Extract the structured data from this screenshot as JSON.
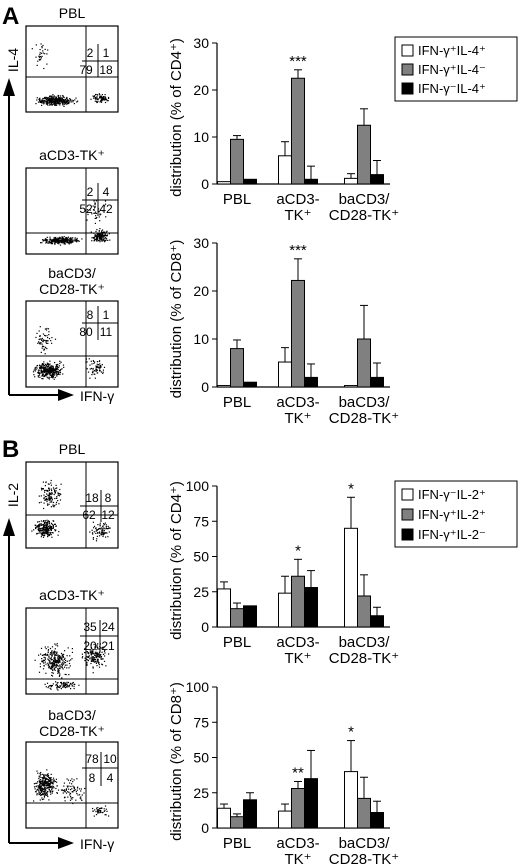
{
  "panels": {
    "A": {
      "letter": "A",
      "flow_axis_y": "IL-4",
      "flow_axis_x": "IFN-γ",
      "flow_plots": [
        {
          "title": "PBL",
          "quadrants": {
            "ul": "2",
            "ur": "1",
            "ll": "79",
            "lr": "18"
          }
        },
        {
          "title": "aCD3-TK⁺",
          "quadrants": {
            "ul": "2",
            "ur": "4",
            "ll": "52",
            "lr": "42"
          }
        },
        {
          "title_line1": "baCD3/",
          "title_line2": "CD28-TK⁺",
          "quadrants": {
            "ul": "8",
            "ur": "1",
            "ll": "80",
            "lr": "11"
          }
        }
      ],
      "legend": [
        "IFN-γ⁺IL-4⁺",
        "IFN-γ⁺IL-4⁻",
        "IFN-γ⁻IL-4⁺"
      ]
    },
    "B": {
      "letter": "B",
      "flow_axis_y": "IL-2",
      "flow_axis_x": "IFN-γ",
      "flow_plots": [
        {
          "title": "PBL",
          "quadrants": {
            "ul": "18",
            "ur": "8",
            "ll": "62",
            "lr": "12"
          }
        },
        {
          "title": "aCD3-TK⁺",
          "quadrants": {
            "ul": "35",
            "ur": "24",
            "ll": "20",
            "lr": "21"
          }
        },
        {
          "title_line1": "baCD3/",
          "title_line2": "CD28-TK⁺",
          "quadrants": {
            "ul": "78",
            "ur": "10",
            "ll": "8",
            "lr": "4"
          }
        }
      ],
      "legend": [
        "IFN-γ⁻IL-2⁺",
        "IFN-γ⁺IL-2⁺",
        "IFN-γ⁺IL-2⁻"
      ]
    }
  },
  "series_colors": [
    "#ffffff",
    "#808080",
    "#000000"
  ],
  "chart_data": [
    {
      "type": "bar",
      "panel": "A",
      "ylabel": "distribution (% of CD4⁺)",
      "ylim": [
        0,
        30
      ],
      "yticks": [
        0,
        10,
        20,
        30
      ],
      "categories": [
        "PBL",
        "aCD3-TK⁺",
        "baCD3/CD28-TK⁺"
      ],
      "category_lines": [
        [
          "PBL"
        ],
        [
          "aCD3-",
          "TK⁺"
        ],
        [
          "baCD3/",
          "CD28-TK⁺"
        ]
      ],
      "series": [
        {
          "name": "IFN-γ⁺IL-4⁺",
          "values": [
            0.5,
            6,
            1.2
          ],
          "errors": [
            0,
            3,
            1
          ]
        },
        {
          "name": "IFN-γ⁺IL-4⁻",
          "values": [
            9.5,
            22.5,
            12.5
          ],
          "errors": [
            0.8,
            1.8,
            3.5
          ]
        },
        {
          "name": "IFN-γ⁻IL-4⁺",
          "values": [
            1,
            1,
            2
          ],
          "errors": [
            0,
            2.8,
            3
          ]
        }
      ],
      "annotations": [
        {
          "category": 1,
          "text": "***"
        }
      ]
    },
    {
      "type": "bar",
      "panel": "A",
      "ylabel": "distribution (% of CD8⁺)",
      "ylim": [
        0,
        30
      ],
      "yticks": [
        0,
        10,
        20,
        30
      ],
      "categories": [
        "PBL",
        "aCD3-TK⁺",
        "baCD3/CD28-TK⁺"
      ],
      "category_lines": [
        [
          "PBL"
        ],
        [
          "aCD3-",
          "TK⁺"
        ],
        [
          "baCD3/",
          "CD28-TK⁺"
        ]
      ],
      "series": [
        {
          "name": "IFN-γ⁺IL-4⁺",
          "values": [
            0.3,
            5.2,
            0.3
          ],
          "errors": [
            0,
            3,
            0
          ]
        },
        {
          "name": "IFN-γ⁺IL-4⁻",
          "values": [
            8,
            22.2,
            10
          ],
          "errors": [
            1.8,
            4.5,
            7
          ]
        },
        {
          "name": "IFN-γ⁻IL-4⁺",
          "values": [
            1,
            2,
            2
          ],
          "errors": [
            0,
            2.8,
            3
          ]
        }
      ],
      "annotations": [
        {
          "category": 1,
          "text": "***"
        }
      ]
    },
    {
      "type": "bar",
      "panel": "B",
      "ylabel": "distribution (% of CD4⁺)",
      "ylim": [
        0,
        100
      ],
      "yticks": [
        0,
        25,
        50,
        75,
        100
      ],
      "categories": [
        "PBL",
        "aCD3-TK⁺",
        "baCD3/CD28-TK⁺"
      ],
      "category_lines": [
        [
          "PBL"
        ],
        [
          "aCD3-",
          "TK⁺"
        ],
        [
          "baCD3/",
          "CD28-TK⁺"
        ]
      ],
      "series": [
        {
          "name": "IFN-γ⁻IL-2⁺",
          "values": [
            27,
            24,
            70
          ],
          "errors": [
            5,
            12,
            22
          ]
        },
        {
          "name": "IFN-γ⁺IL-2⁺",
          "values": [
            13,
            36,
            22
          ],
          "errors": [
            4,
            12,
            15
          ]
        },
        {
          "name": "IFN-γ⁺IL-2⁻",
          "values": [
            15,
            28,
            8
          ],
          "errors": [
            0,
            12,
            6
          ]
        }
      ],
      "annotations": [
        {
          "category": 1,
          "series": 1,
          "text": "*"
        },
        {
          "category": 2,
          "series": 0,
          "text": "*"
        }
      ]
    },
    {
      "type": "bar",
      "panel": "B",
      "ylabel": "distribution (% of CD8⁺)",
      "ylim": [
        0,
        100
      ],
      "yticks": [
        0,
        25,
        50,
        75,
        100
      ],
      "categories": [
        "PBL",
        "aCD3-TK⁺",
        "baCD3/CD28-TK⁺"
      ],
      "category_lines": [
        [
          "PBL"
        ],
        [
          "aCD3-",
          "TK⁺"
        ],
        [
          "baCD3/",
          "CD28-TK⁺"
        ]
      ],
      "series": [
        {
          "name": "IFN-γ⁻IL-2⁺",
          "values": [
            14,
            12,
            40
          ],
          "errors": [
            3,
            5,
            22
          ]
        },
        {
          "name": "IFN-γ⁺IL-2⁺",
          "values": [
            8,
            28,
            21
          ],
          "errors": [
            2,
            5,
            15
          ]
        },
        {
          "name": "IFN-γ⁺IL-2⁻",
          "values": [
            20,
            35,
            11
          ],
          "errors": [
            5,
            20,
            8
          ]
        }
      ],
      "annotations": [
        {
          "category": 1,
          "series": 1,
          "text": "**"
        },
        {
          "category": 2,
          "series": 0,
          "text": "*"
        }
      ]
    }
  ]
}
